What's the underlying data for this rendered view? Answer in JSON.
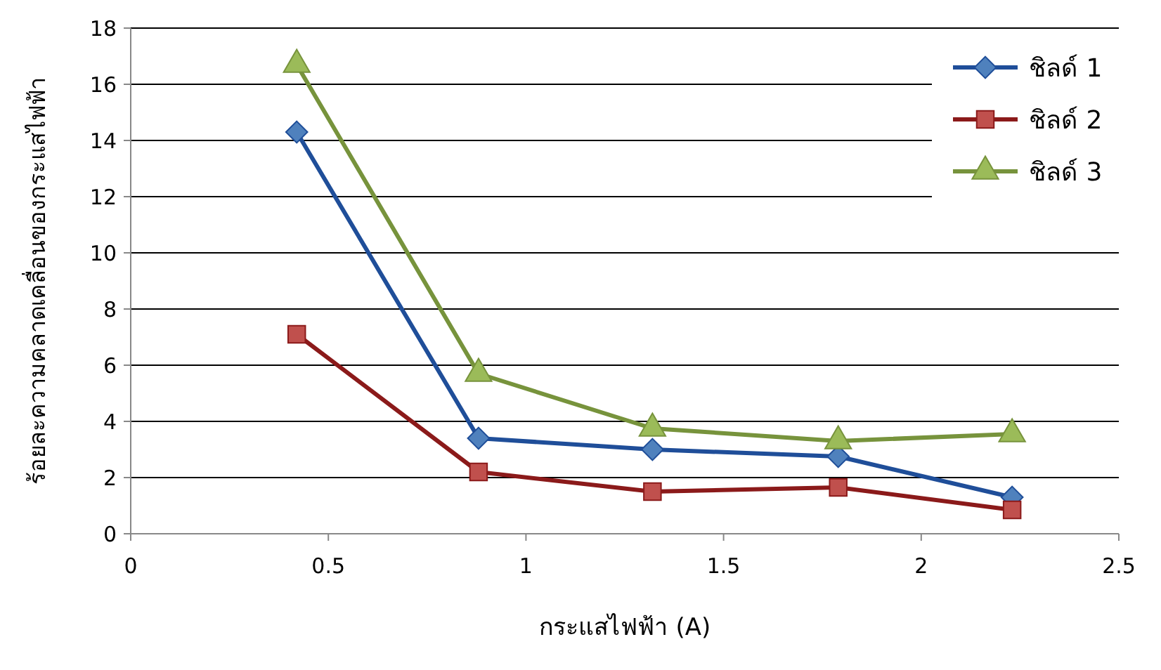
{
  "chart_data": {
    "type": "line",
    "xlabel": "กระแสไฟฟ้า (A)",
    "ylabel": "ร้อยละความคลาดเคลื่อนของกระแสไฟฟ้า",
    "x": [
      0.42,
      0.88,
      1.32,
      1.79,
      2.23
    ],
    "series": [
      {
        "name": "ชิลด์ 1",
        "color": "#1f4e99",
        "marker": "diamond",
        "values": [
          14.3,
          3.4,
          3.0,
          2.75,
          1.3
        ]
      },
      {
        "name": "ชิลด์ 2",
        "color": "#8b1a1a",
        "marker": "square",
        "values": [
          7.1,
          2.2,
          1.5,
          1.65,
          0.85
        ]
      },
      {
        "name": "ชิลด์ 3",
        "color": "#77933c",
        "marker": "triangle",
        "values": [
          16.7,
          5.7,
          3.75,
          3.3,
          3.55
        ]
      }
    ],
    "xlim": [
      0,
      2.5
    ],
    "xticks": [
      0,
      0.5,
      1,
      1.5,
      2,
      2.5
    ],
    "ylim": [
      0,
      18
    ],
    "yticks": [
      0,
      2,
      4,
      6,
      8,
      10,
      12,
      14,
      16,
      18
    ],
    "grid": "y",
    "legend": "top right",
    "line_style": "solid"
  }
}
